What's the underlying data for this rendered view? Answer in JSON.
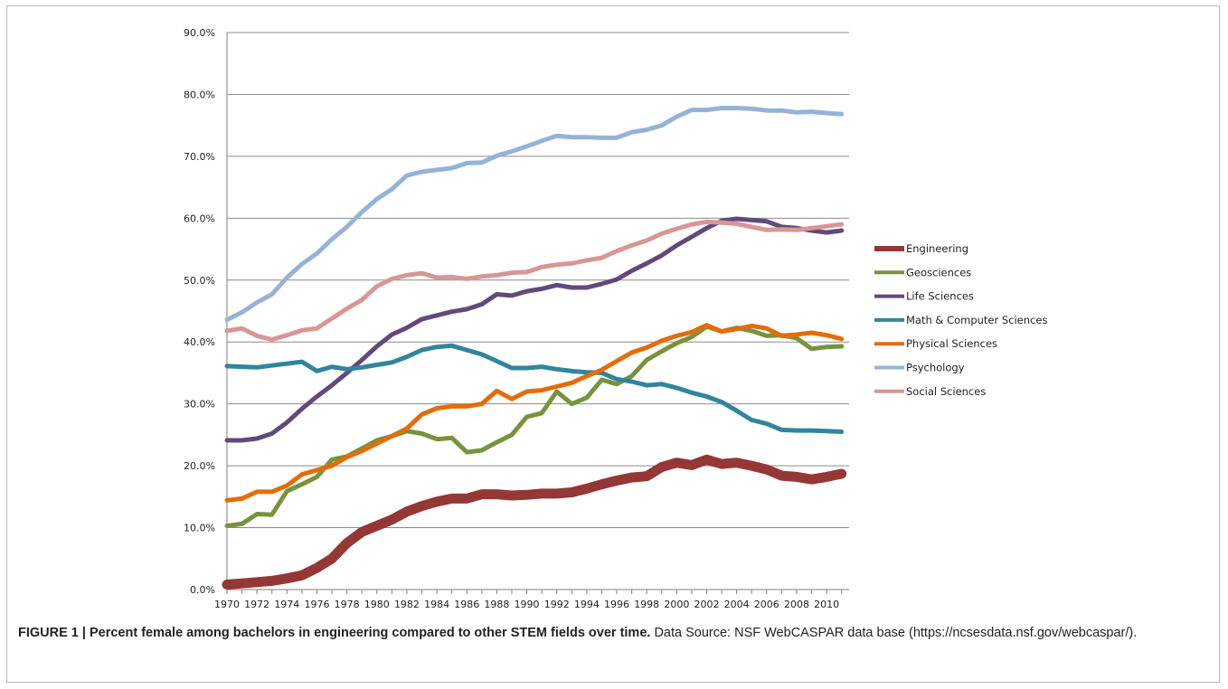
{
  "chart_data": {
    "type": "line",
    "title": "",
    "xlabel": "",
    "ylabel": "",
    "ylim": [
      0,
      90
    ],
    "yticks": [
      "0.0%",
      "10.0%",
      "20.0%",
      "30.0%",
      "40.0%",
      "50.0%",
      "60.0%",
      "70.0%",
      "80.0%",
      "90.0%"
    ],
    "xticks": [
      "1970",
      "1972",
      "1974",
      "1976",
      "1978",
      "1980",
      "1982",
      "1984",
      "1986",
      "1988",
      "1990",
      "1992",
      "1994",
      "1996",
      "1998",
      "2000",
      "2002",
      "2004",
      "2006",
      "2008",
      "2010"
    ],
    "x": [
      1970,
      1971,
      1972,
      1973,
      1974,
      1975,
      1976,
      1977,
      1978,
      1979,
      1980,
      1981,
      1982,
      1983,
      1984,
      1985,
      1986,
      1987,
      1988,
      1989,
      1990,
      1991,
      1992,
      1993,
      1994,
      1995,
      1996,
      1997,
      1998,
      1999,
      2000,
      2001,
      2002,
      2003,
      2004,
      2005,
      2006,
      2007,
      2008,
      2009,
      2010,
      2011
    ],
    "grid": "horizontal",
    "legend_position": "right",
    "series": [
      {
        "name": "Engineering",
        "color": "#953735",
        "values": [
          0.8,
          1.0,
          1.2,
          1.4,
          1.8,
          2.3,
          3.5,
          5.0,
          7.5,
          9.3,
          10.3,
          11.3,
          12.6,
          13.5,
          14.2,
          14.7,
          14.7,
          15.4,
          15.4,
          15.2,
          15.3,
          15.5,
          15.5,
          15.7,
          16.3,
          17.0,
          17.6,
          18.1,
          18.3,
          19.8,
          20.5,
          20.1,
          21.0,
          20.3,
          20.5,
          20.0,
          19.4,
          18.4,
          18.2,
          17.8,
          18.2,
          18.7
        ]
      },
      {
        "name": "Geosciences",
        "color": "#77933c",
        "values": [
          10.3,
          10.6,
          12.2,
          12.1,
          15.9,
          17.0,
          18.2,
          21.0,
          21.5,
          22.8,
          24.1,
          24.8,
          25.6,
          25.2,
          24.3,
          24.5,
          22.2,
          22.5,
          23.8,
          25.0,
          27.9,
          28.5,
          32.0,
          30.0,
          31.0,
          33.9,
          33.2,
          34.5,
          37.1,
          38.5,
          39.8,
          40.8,
          42.5,
          41.7,
          42.3,
          41.8,
          41.0,
          41.1,
          40.6,
          38.9,
          39.2,
          39.3
        ]
      },
      {
        "name": "Life Sciences",
        "color": "#604a7b",
        "values": [
          24.1,
          24.1,
          24.4,
          25.2,
          27.0,
          29.2,
          31.2,
          33.0,
          35.0,
          37.1,
          39.3,
          41.2,
          42.3,
          43.7,
          44.3,
          44.9,
          45.3,
          46.1,
          47.7,
          47.5,
          48.2,
          48.6,
          49.2,
          48.8,
          48.8,
          49.4,
          50.1,
          51.5,
          52.7,
          54.0,
          55.6,
          57.0,
          58.4,
          59.6,
          59.9,
          59.7,
          59.5,
          58.6,
          58.4,
          58.0,
          57.7,
          58.0
        ]
      },
      {
        "name": "Math & Computer Sciences",
        "color": "#31859c",
        "values": [
          36.1,
          36.0,
          35.9,
          36.2,
          36.5,
          36.8,
          35.3,
          36.0,
          35.6,
          35.9,
          36.3,
          36.7,
          37.6,
          38.7,
          39.2,
          39.4,
          38.7,
          38.0,
          36.9,
          35.8,
          35.8,
          36.0,
          35.6,
          35.3,
          35.1,
          35.0,
          34.0,
          33.6,
          33.0,
          33.2,
          32.6,
          31.8,
          31.2,
          30.3,
          28.9,
          27.4,
          26.8,
          25.8,
          25.7,
          25.7,
          25.6,
          25.5
        ]
      },
      {
        "name": "Physical Sciences",
        "color": "#e46c0a",
        "values": [
          14.4,
          14.7,
          15.8,
          15.8,
          16.8,
          18.6,
          19.3,
          20.0,
          21.4,
          22.4,
          23.6,
          24.8,
          26.0,
          28.3,
          29.3,
          29.6,
          29.6,
          30.0,
          32.1,
          30.8,
          32.0,
          32.2,
          32.8,
          33.4,
          34.5,
          35.5,
          36.9,
          38.3,
          39.1,
          40.2,
          41.0,
          41.6,
          42.7,
          41.7,
          42.1,
          42.6,
          42.2,
          41.0,
          41.2,
          41.5,
          41.1,
          40.5
        ]
      },
      {
        "name": "Psychology",
        "color": "#95b3d7",
        "values": [
          43.6,
          44.8,
          46.4,
          47.7,
          50.4,
          52.6,
          54.3,
          56.6,
          58.6,
          61.0,
          63.1,
          64.7,
          66.9,
          67.5,
          67.8,
          68.1,
          68.9,
          69.0,
          70.1,
          70.8,
          71.6,
          72.5,
          73.3,
          73.1,
          73.1,
          73.0,
          73.0,
          73.9,
          74.3,
          75.0,
          76.4,
          77.5,
          77.5,
          77.8,
          77.8,
          77.7,
          77.4,
          77.4,
          77.1,
          77.2,
          77.0,
          76.8
        ]
      },
      {
        "name": "Social Sciences",
        "color": "#d99694",
        "values": [
          41.8,
          42.2,
          41.0,
          40.4,
          41.1,
          41.9,
          42.2,
          43.8,
          45.4,
          46.8,
          49.0,
          50.2,
          50.8,
          51.1,
          50.4,
          50.5,
          50.2,
          50.6,
          50.8,
          51.2,
          51.3,
          52.1,
          52.5,
          52.7,
          53.2,
          53.6,
          54.7,
          55.6,
          56.4,
          57.5,
          58.3,
          59.0,
          59.4,
          59.3,
          59.1,
          58.6,
          58.1,
          58.2,
          58.1,
          58.4,
          58.7,
          59.0
        ]
      }
    ]
  },
  "caption": {
    "title": "FIGURE 1 | Percent female among bachelors in engineering compared to other STEM fields over time.",
    "source": "Data Source: NSF WebCASPAR data base (https://ncsesdata.nsf.gov/webcaspar/)."
  }
}
